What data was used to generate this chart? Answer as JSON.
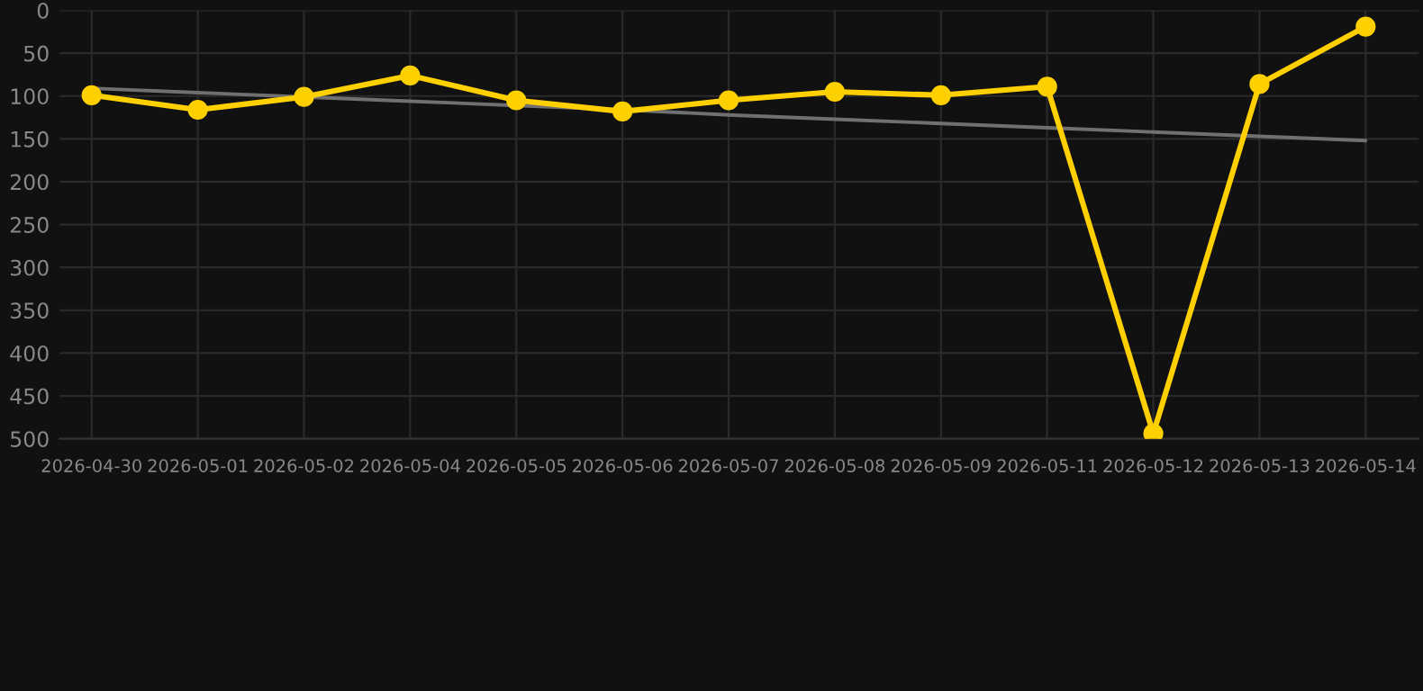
{
  "chart_data": {
    "type": "line",
    "categories": [
      "2026-04-30",
      "2026-05-01",
      "2026-05-02",
      "2026-05-04",
      "2026-05-05",
      "2026-05-06",
      "2026-05-07",
      "2026-05-08",
      "2026-05-09",
      "2026-05-11",
      "2026-05-12",
      "2026-05-13",
      "2026-05-14"
    ],
    "series": [
      {
        "color": "#ffd000",
        "marker": "circle",
        "values": [
          99,
          116,
          101,
          76,
          105,
          118,
          105,
          95,
          99,
          89,
          494,
          86,
          19
        ]
      },
      {
        "color": "#707070",
        "marker": "none",
        "values": [
          91,
          96,
          101,
          106,
          111,
          116,
          122,
          127,
          132,
          137,
          142,
          147,
          152
        ]
      }
    ],
    "ylim": [
      500,
      0
    ],
    "yticks": [
      0,
      50,
      100,
      150,
      200,
      250,
      300,
      350,
      400,
      450,
      500
    ],
    "grid": true
  }
}
